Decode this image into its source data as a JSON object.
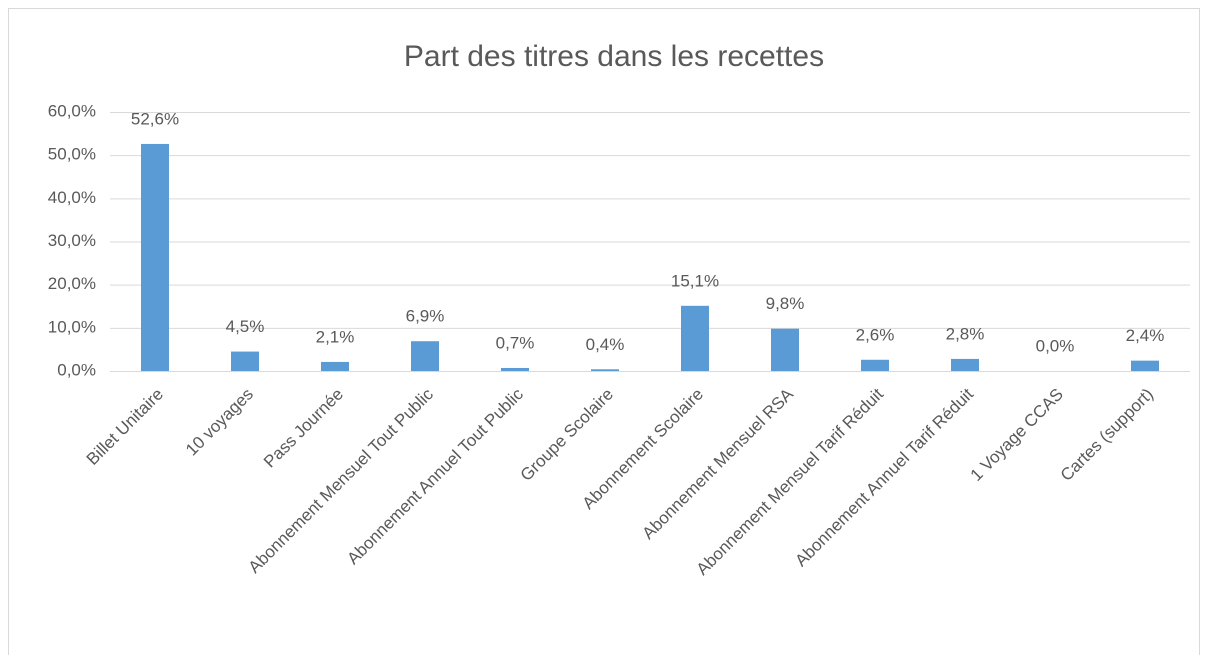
{
  "chart_data": {
    "type": "bar",
    "title": "Part des titres dans les recettes",
    "categories": [
      "Billet Unitaire",
      "10 voyages",
      "Pass Journée",
      "Abonnement Mensuel Tout Public",
      "Abonnement Annuel Tout Public",
      "Groupe Scolaire",
      "Abonnement Scolaire",
      "Abonnement Mensuel RSA",
      "Abonnement Mensuel Tarif Réduit",
      "Abonnement Annuel Tarif Réduit",
      "1 Voyage CCAS",
      "Cartes (support)"
    ],
    "values": [
      52.6,
      4.5,
      2.1,
      6.9,
      0.7,
      0.4,
      15.1,
      9.8,
      2.6,
      2.8,
      0.0,
      2.4
    ],
    "value_labels": [
      "52,6%",
      "4,5%",
      "2,1%",
      "6,9%",
      "0,7%",
      "0,4%",
      "15,1%",
      "9,8%",
      "2,6%",
      "2,8%",
      "0,0%",
      "2,4%"
    ],
    "color": "#5b9bd5",
    "ylim": [
      0,
      60
    ],
    "yticks": [
      {
        "value": 0,
        "label": "0,0%"
      },
      {
        "value": 10,
        "label": "10,0%"
      },
      {
        "value": 20,
        "label": "20,0%"
      },
      {
        "value": 30,
        "label": "30,0%"
      },
      {
        "value": 40,
        "label": "40,0%"
      },
      {
        "value": 50,
        "label": "50,0%"
      },
      {
        "value": 60,
        "label": "60,0%"
      }
    ],
    "grid": true
  }
}
